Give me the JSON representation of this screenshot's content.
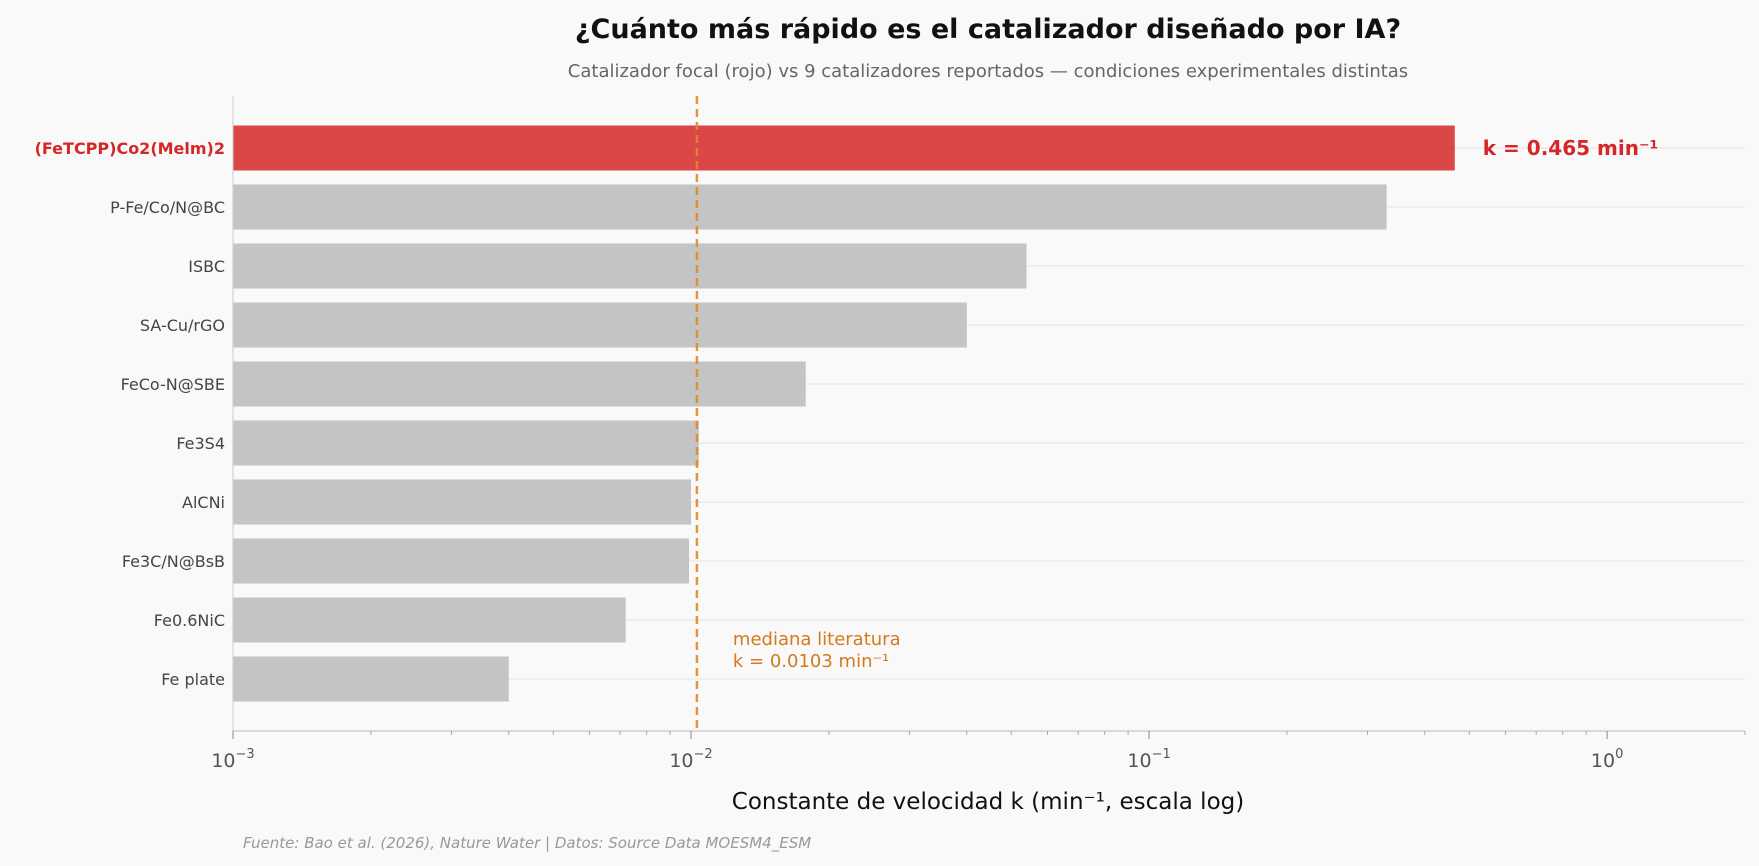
{
  "chart_data": {
    "type": "bar",
    "orientation": "horizontal",
    "title": "¿Cuánto más rápido es el catalizador diseñado por IA?",
    "subtitle": "Catalizador focal (rojo) vs 9 catalizadores reportados — condiciones experimentales distintas",
    "xlabel": "Constante de velocidad k (min⁻¹, escala log)",
    "xscale": "log",
    "xlim": [
      0.001,
      2
    ],
    "xticks": [
      {
        "value": 0.001,
        "base": "10",
        "exp": "−3"
      },
      {
        "value": 0.01,
        "base": "10",
        "exp": "−2"
      },
      {
        "value": 0.1,
        "base": "10",
        "exp": "−1"
      },
      {
        "value": 1,
        "base": "10",
        "exp": "0"
      }
    ],
    "grid": "y-minor",
    "categories": [
      "(FeTCPP)Co2(Melm)2",
      "P-Fe/Co/N@BC",
      "ISBC",
      "SA-Cu/rGO",
      "FeCo-N@SBE",
      "Fe3S4",
      "AlCNi",
      "Fe3C/N@BsB",
      "Fe0.6NiC",
      "Fe plate"
    ],
    "values": [
      0.465,
      0.33,
      0.054,
      0.04,
      0.0178,
      0.0104,
      0.01,
      0.0099,
      0.0072,
      0.004
    ],
    "highlight_index": 0,
    "highlight_label": "k = 0.465 min⁻¹",
    "median": {
      "value": 0.0103,
      "label_line1": "mediana literatura",
      "label_line2": "k = 0.0103 min⁻¹"
    },
    "source": "Fuente: Bao et al. (2026), Nature Water | Datos: Source Data MOESM4_ESM"
  },
  "colors": {
    "focal": "#d62728",
    "other": "#c4c4c4",
    "median": "#e08a2b",
    "background": "#f9f9f9"
  }
}
